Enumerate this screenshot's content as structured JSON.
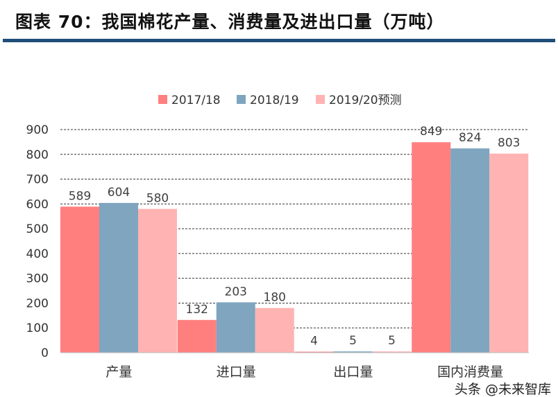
{
  "title": "图表 70：我国棉花产量、消费量及进出口量（万吨）",
  "watermark": "头条 @未来智库",
  "chart_data": {
    "type": "bar",
    "title": "",
    "categories": [
      "产量",
      "进口量",
      "出口量",
      "国内消费量"
    ],
    "series": [
      {
        "name": "2017/18",
        "values": [
          589,
          132,
          4,
          849
        ],
        "color": "#FF7F7F"
      },
      {
        "name": "2018/19",
        "values": [
          604,
          203,
          5,
          824
        ],
        "color": "#7FA5BF"
      },
      {
        "name": "2019/20预测",
        "values": [
          580,
          180,
          5,
          803
        ],
        "color": "#FFB3B3"
      }
    ],
    "ylim": [
      0,
      900
    ],
    "yticks": [
      0,
      100,
      200,
      300,
      400,
      500,
      600,
      700,
      800,
      900
    ],
    "grid": true,
    "legend": "top"
  }
}
